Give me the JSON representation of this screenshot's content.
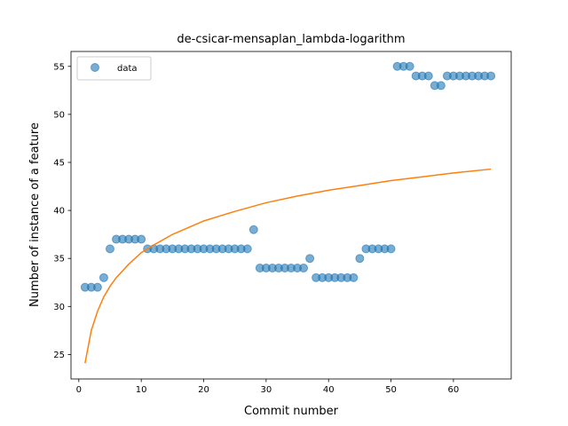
{
  "chart_data": {
    "type": "scatter",
    "title": "de-csicar-mensaplan_lambda-logarithm",
    "xlabel": "Commit number",
    "ylabel": "Number of instance of a feature",
    "xlim": [
      -1.25,
      69.25
    ],
    "ylim": [
      22.45,
      56.55
    ],
    "xticks": [
      0,
      10,
      20,
      30,
      40,
      50,
      60
    ],
    "yticks": [
      25,
      30,
      35,
      40,
      45,
      50,
      55
    ],
    "grid": false,
    "legend_placement": "top-left",
    "series": [
      {
        "name": "data",
        "kind": "points",
        "color": "#1f77b4",
        "x": [
          1,
          2,
          3,
          4,
          5,
          6,
          7,
          8,
          9,
          10,
          11,
          12,
          13,
          14,
          15,
          16,
          17,
          18,
          19,
          20,
          21,
          22,
          23,
          24,
          25,
          26,
          27,
          28,
          29,
          30,
          31,
          32,
          33,
          34,
          35,
          36,
          37,
          38,
          39,
          40,
          41,
          42,
          43,
          44,
          45,
          46,
          47,
          48,
          49,
          50,
          51,
          52,
          53,
          54,
          55,
          56,
          57,
          58,
          59,
          60,
          61,
          62,
          63,
          64,
          65,
          66
        ],
        "y": [
          32,
          32,
          32,
          33,
          36,
          37,
          37,
          37,
          37,
          37,
          36,
          36,
          36,
          36,
          36,
          36,
          36,
          36,
          36,
          36,
          36,
          36,
          36,
          36,
          36,
          36,
          36,
          38,
          34,
          34,
          34,
          34,
          34,
          34,
          34,
          34,
          35,
          33,
          33,
          33,
          33,
          33,
          33,
          33,
          35,
          36,
          36,
          36,
          36,
          36,
          55,
          55,
          55,
          54,
          54,
          54,
          53,
          53,
          54,
          54,
          54,
          54,
          54,
          54,
          54,
          54
        ]
      },
      {
        "kind": "fit-line",
        "color": "#ff7f0e",
        "x": [
          1,
          2,
          3,
          4,
          5,
          6,
          8,
          10,
          12,
          15,
          20,
          25,
          30,
          35,
          40,
          45,
          50,
          55,
          60,
          66
        ],
        "y": [
          24.1,
          27.5,
          29.5,
          31.0,
          32.1,
          33.0,
          34.4,
          35.6,
          36.4,
          37.5,
          38.9,
          39.9,
          40.8,
          41.5,
          42.1,
          42.6,
          43.1,
          43.5,
          43.9,
          44.3
        ]
      }
    ]
  }
}
